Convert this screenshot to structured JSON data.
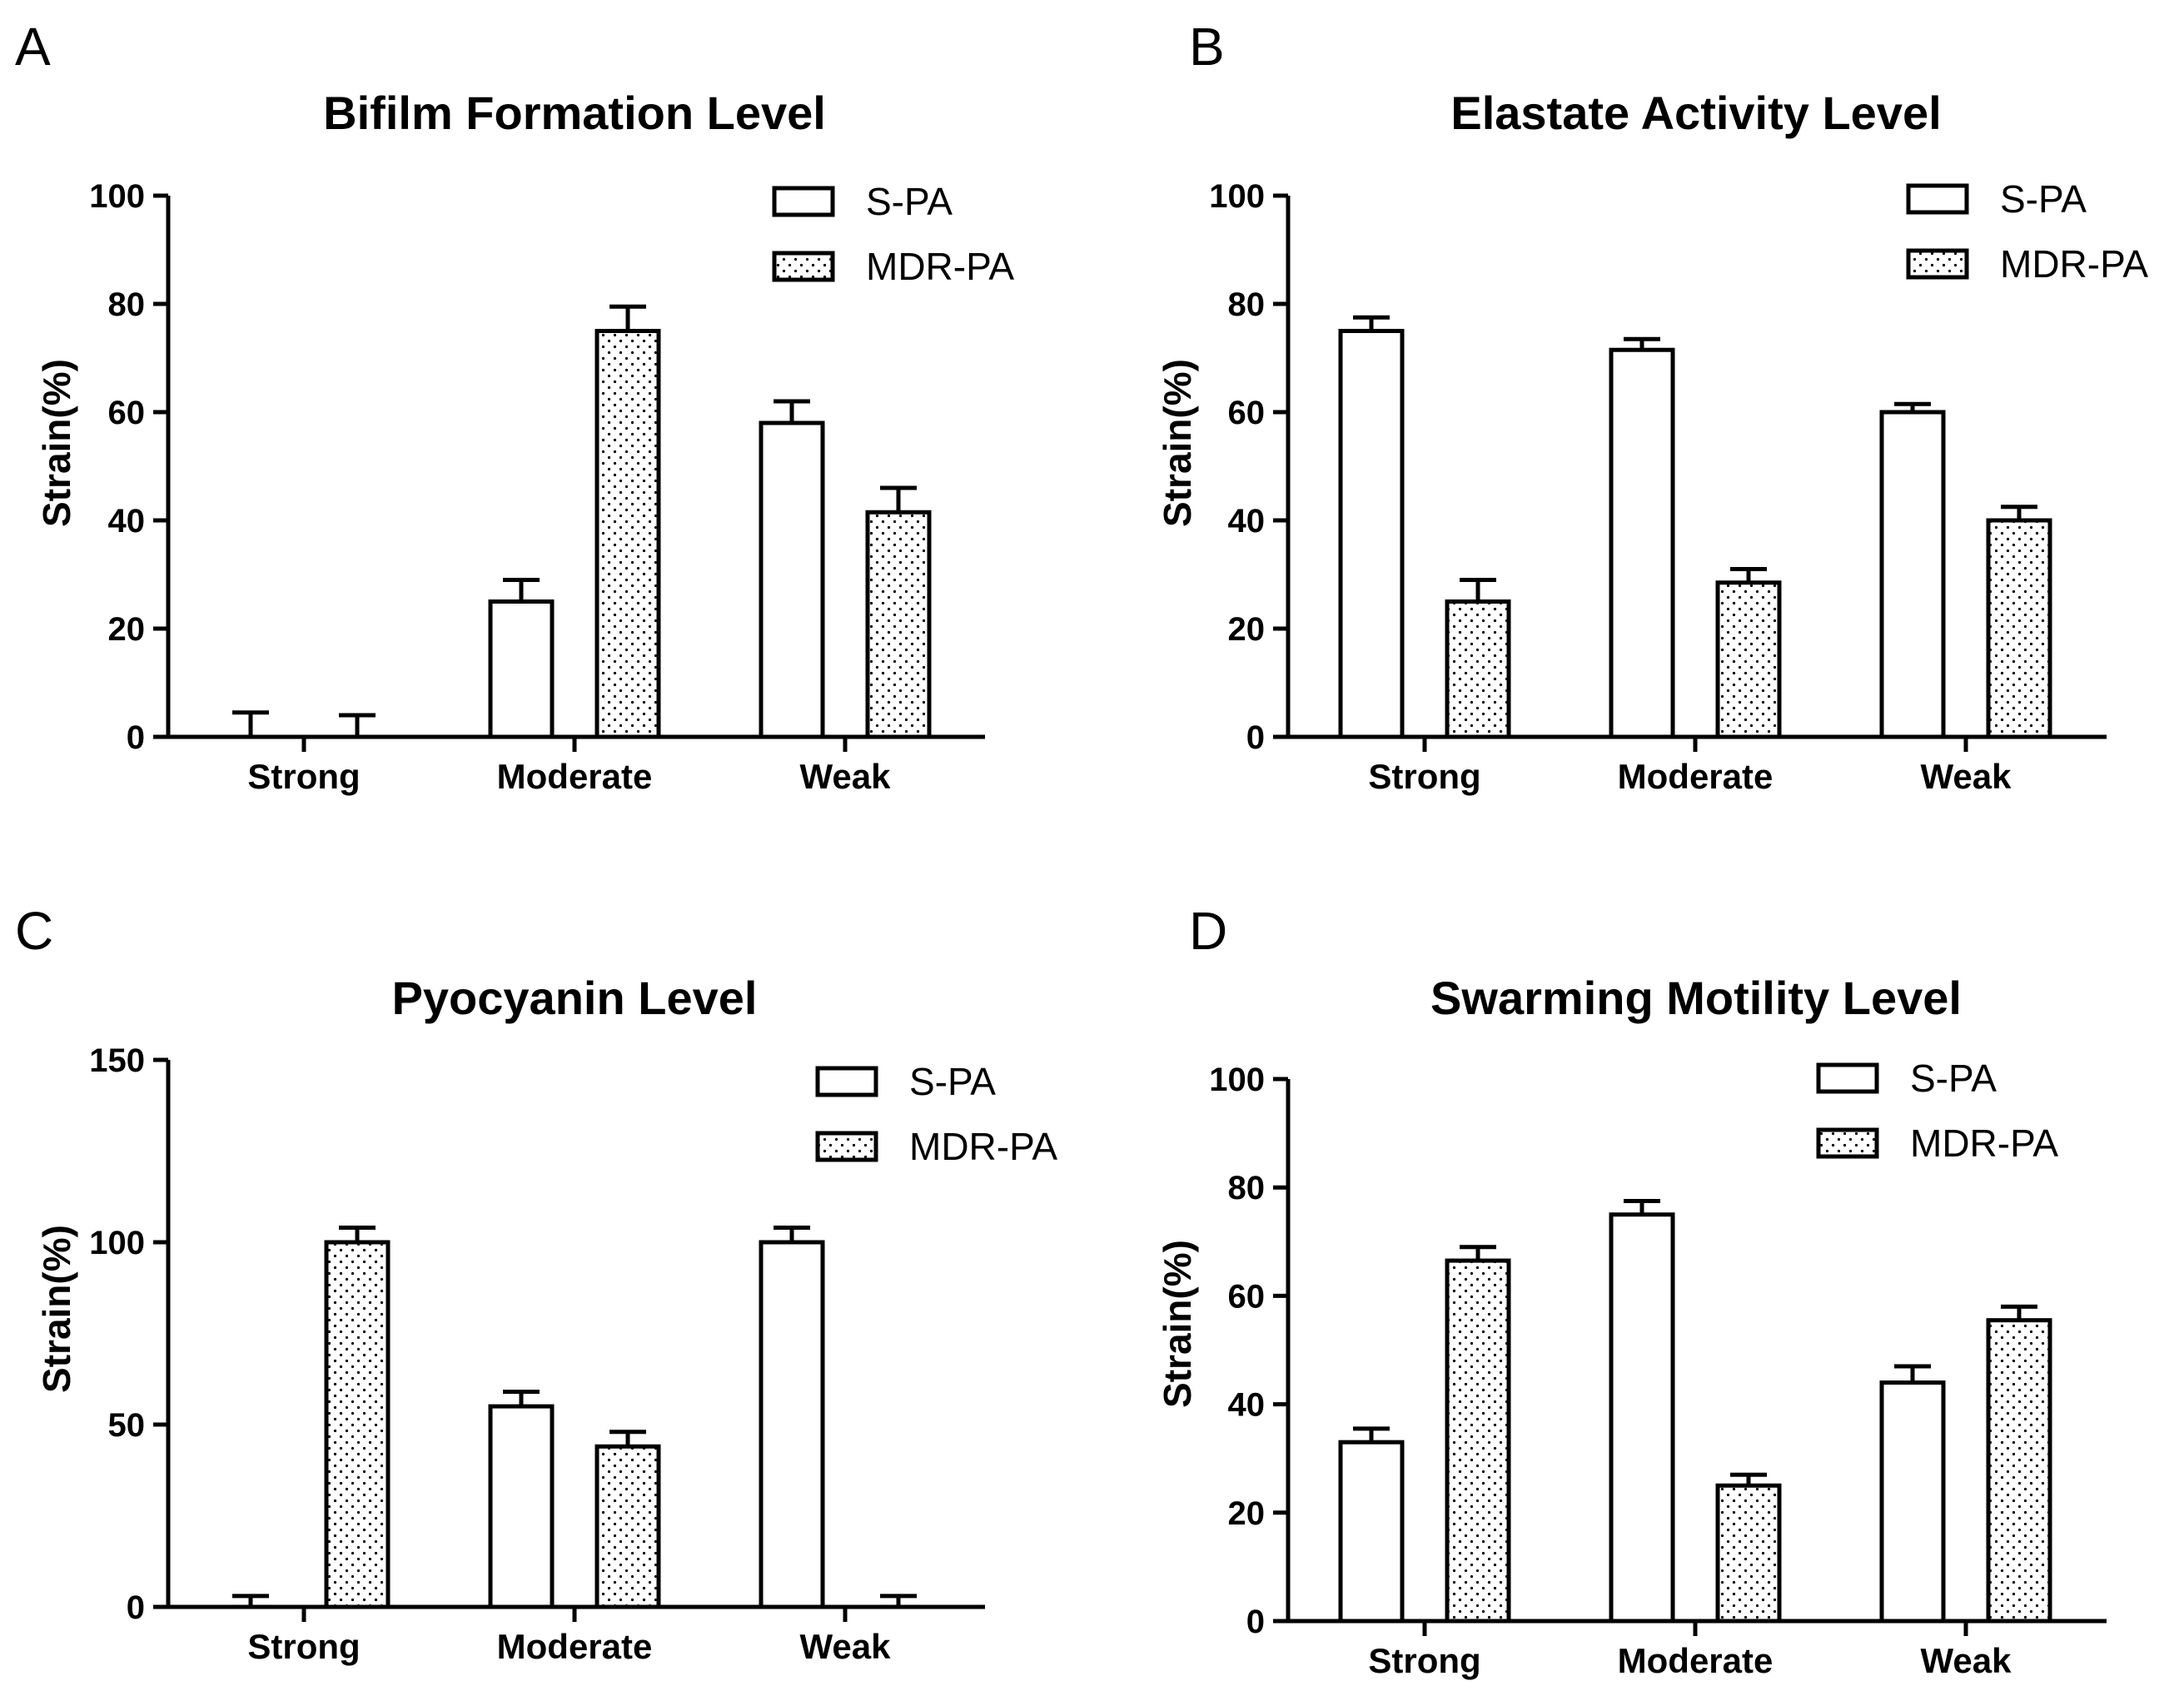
{
  "chart_data": [
    {
      "type": "bar",
      "panel": "A",
      "title": "Bifilm Formation Level",
      "xlabel": "",
      "ylabel": "Strain(%)",
      "ylim": [
        0,
        100
      ],
      "yticks": [
        "0",
        "20",
        "40",
        "60",
        "80",
        "100"
      ],
      "categories": [
        "Strong",
        "Moderate",
        "Weak"
      ],
      "legend_position": "top-right",
      "series": [
        {
          "name": "S-PA",
          "pattern": "open",
          "values": [
            0,
            25,
            58
          ],
          "errors": [
            4.5,
            4,
            4
          ]
        },
        {
          "name": "MDR-PA",
          "pattern": "dotted",
          "values": [
            0,
            75,
            41.5
          ],
          "errors": [
            4,
            4.5,
            4.5
          ]
        }
      ]
    },
    {
      "type": "bar",
      "panel": "B",
      "title": "Elastate Activity Level",
      "xlabel": "",
      "ylabel": "Strain(%)",
      "ylim": [
        0,
        100
      ],
      "yticks": [
        "0",
        "20",
        "40",
        "60",
        "80",
        "100"
      ],
      "categories": [
        "Strong",
        "Moderate",
        "Weak"
      ],
      "legend_position": "top-right",
      "series": [
        {
          "name": "S-PA",
          "pattern": "open",
          "values": [
            75,
            71.5,
            60
          ],
          "errors": [
            2.5,
            2,
            1.5
          ]
        },
        {
          "name": "MDR-PA",
          "pattern": "dotted",
          "values": [
            25,
            28.5,
            40
          ],
          "errors": [
            4,
            2.5,
            2.5
          ]
        }
      ]
    },
    {
      "type": "bar",
      "panel": "C",
      "title": "Pyocyanin Level",
      "xlabel": "",
      "ylabel": "Strain(%)",
      "ylim": [
        0,
        150
      ],
      "yticks": [
        "0",
        "50",
        "100",
        "150"
      ],
      "categories": [
        "Strong",
        "Moderate",
        "Weak"
      ],
      "legend_position": "top-right",
      "series": [
        {
          "name": "S-PA",
          "pattern": "open",
          "values": [
            0,
            55,
            100
          ],
          "errors": [
            3,
            4,
            4
          ]
        },
        {
          "name": "MDR-PA",
          "pattern": "dotted",
          "values": [
            100,
            44,
            0
          ],
          "errors": [
            4,
            4,
            3
          ]
        }
      ]
    },
    {
      "type": "bar",
      "panel": "D",
      "title": "Swarming Motility Level",
      "xlabel": "",
      "ylabel": "Strain(%)",
      "ylim": [
        0,
        100
      ],
      "yticks": [
        "0",
        "20",
        "40",
        "60",
        "80",
        "100"
      ],
      "categories": [
        "Strong",
        "Moderate",
        "Weak"
      ],
      "legend_position": "top-right",
      "series": [
        {
          "name": "S-PA",
          "pattern": "open",
          "values": [
            33,
            75,
            44
          ],
          "errors": [
            2.5,
            2.5,
            3
          ]
        },
        {
          "name": "MDR-PA",
          "pattern": "dotted",
          "values": [
            66.5,
            25,
            55.5
          ],
          "errors": [
            2.5,
            2,
            2.5
          ]
        }
      ]
    }
  ]
}
